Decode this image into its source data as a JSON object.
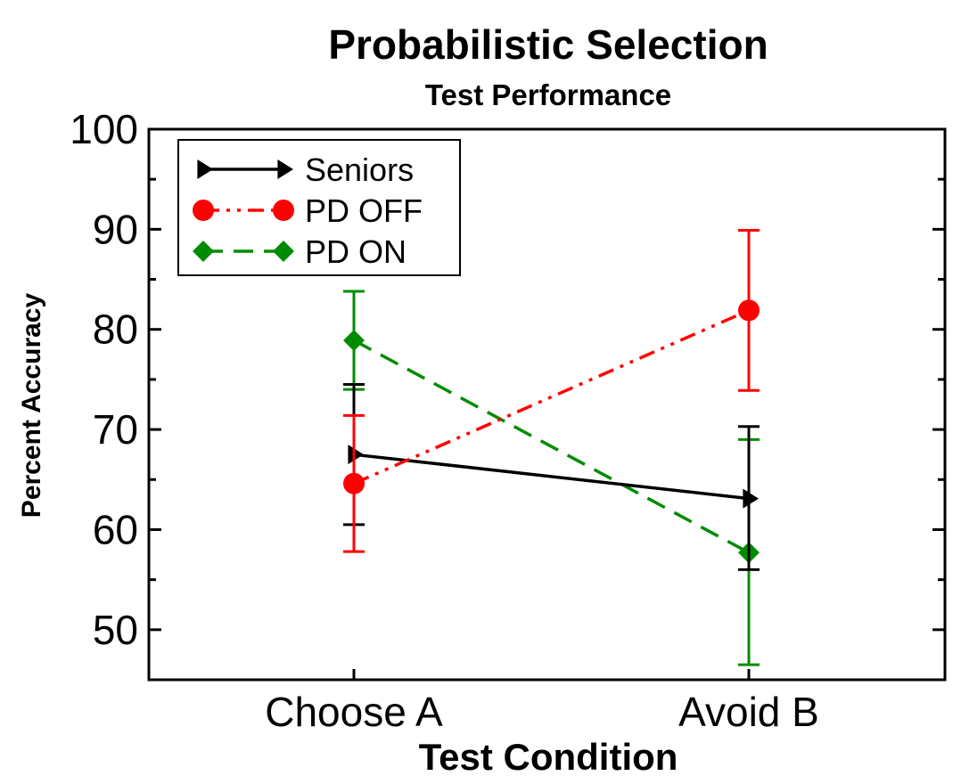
{
  "chart_data": {
    "type": "line",
    "title": "Probabilistic Selection",
    "subtitle": "Test Performance",
    "xlabel": "Test Condition",
    "ylabel": "Percent Accuracy",
    "categories": [
      "Choose A",
      "Avoid B"
    ],
    "ylim": [
      45,
      100
    ],
    "yticks": [
      50,
      60,
      70,
      80,
      90,
      100
    ],
    "legend_position": "top-left",
    "series": [
      {
        "name": "Seniors",
        "values": [
          67.5,
          63.1
        ],
        "err_low": [
          60.5,
          56.0
        ],
        "err_high": [
          74.5,
          70.3
        ],
        "color": "#000000",
        "marker": "triangle-right",
        "line_style": "solid"
      },
      {
        "name": "PD OFF",
        "values": [
          64.6,
          81.9
        ],
        "err_low": [
          57.8,
          73.9
        ],
        "err_high": [
          71.4,
          89.9
        ],
        "color": "#ff0000",
        "marker": "circle",
        "line_style": "dash-dot-dot"
      },
      {
        "name": "PD ON",
        "values": [
          78.9,
          57.7
        ],
        "err_low": [
          74.0,
          46.5
        ],
        "err_high": [
          83.8,
          69.0
        ],
        "color": "#008c00",
        "marker": "diamond",
        "line_style": "dashed"
      }
    ]
  }
}
